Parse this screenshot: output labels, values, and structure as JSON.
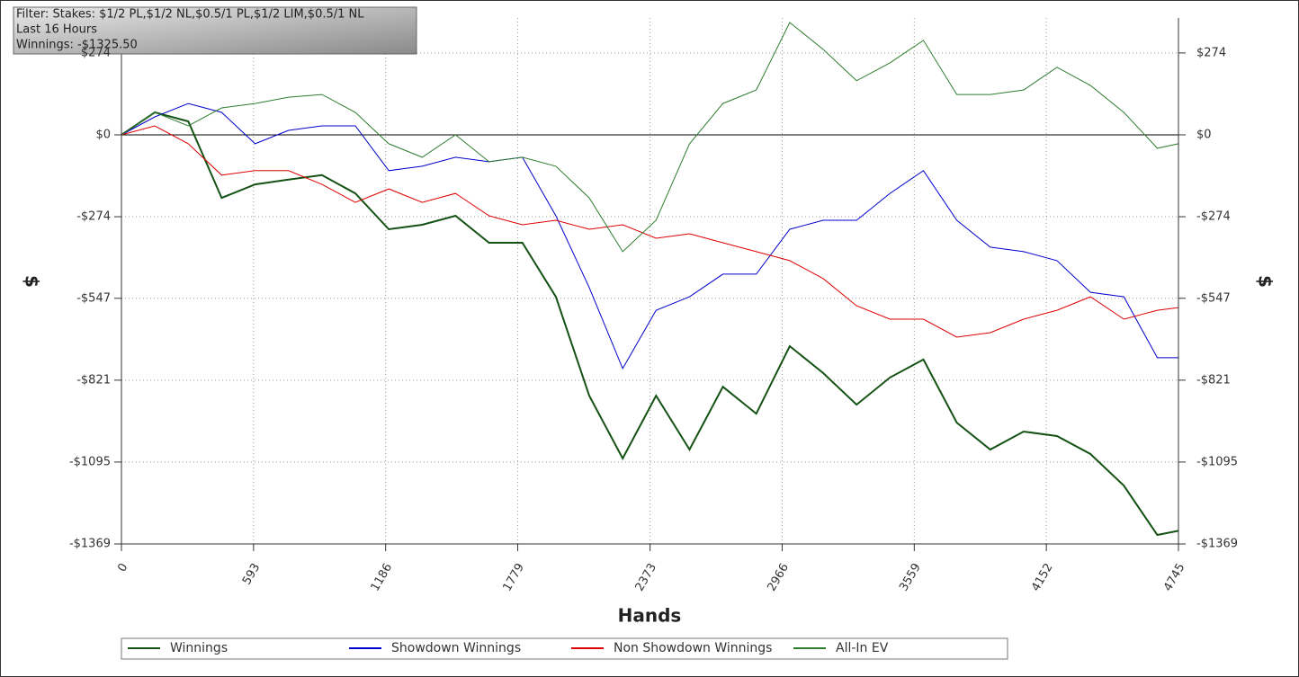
{
  "chart_data": {
    "type": "line",
    "annotations": [
      "Filter: Stakes: $1/2 PL,$1/2 NL,$0.5/1 PL,$1/2 LIM,$0.5/1 NL",
      "Last 16 Hours",
      "Winnings: -$1325.50"
    ],
    "x_label": "Hands",
    "y_label": "$",
    "xlim": [
      0,
      4745
    ],
    "xticks": [
      0,
      593,
      1186,
      1779,
      2373,
      2966,
      3559,
      4152,
      4745
    ],
    "ylim": [
      -1369,
      391
    ],
    "yticks": [
      {
        "value": 274,
        "label": "$274"
      },
      {
        "value": 0,
        "label": "$0"
      },
      {
        "value": -274,
        "label": "-$274"
      },
      {
        "value": -547,
        "label": "-$547"
      },
      {
        "value": -821,
        "label": "-$821"
      },
      {
        "value": -1095,
        "label": "-$1095"
      },
      {
        "value": -1369,
        "label": "-$1369"
      }
    ],
    "grid": true,
    "x": [
      0,
      150,
      300,
      450,
      600,
      750,
      900,
      1050,
      1200,
      1350,
      1500,
      1650,
      1800,
      1950,
      2100,
      2250,
      2400,
      2550,
      2700,
      2850,
      3000,
      3150,
      3300,
      3450,
      3600,
      3750,
      3900,
      4050,
      4200,
      4350,
      4500,
      4650,
      4745
    ],
    "series": [
      {
        "name": "Winnings",
        "color": "#145214",
        "width": 2,
        "values": [
          0,
          75,
          45,
          -211,
          -166,
          -150,
          -135,
          -196,
          -316,
          -301,
          -271,
          -361,
          -361,
          -542,
          -873,
          -1083,
          -873,
          -1053,
          -843,
          -933,
          -707,
          -797,
          -903,
          -812,
          -752,
          -963,
          -1053,
          -993,
          -1008,
          -1068,
          -1174,
          -1339,
          -1325
        ]
      },
      {
        "name": "Showdown Winnings",
        "color": "#0000cc",
        "width": 1,
        "values": [
          0,
          60,
          105,
          75,
          -30,
          15,
          30,
          30,
          -120,
          -105,
          -75,
          -90,
          -75,
          -271,
          -511,
          -782,
          -587,
          -542,
          -466,
          -466,
          -316,
          -286,
          -286,
          -196,
          -120,
          -286,
          -376,
          -391,
          -421,
          -527,
          -542,
          -746,
          -746
        ]
      },
      {
        "name": "Non Showdown Winnings",
        "color": "#dd0000",
        "width": 1,
        "values": [
          0,
          30,
          -30,
          -135,
          -120,
          -120,
          -166,
          -226,
          -181,
          -226,
          -196,
          -271,
          -301,
          -286,
          -316,
          -301,
          -346,
          -331,
          -361,
          -391,
          -421,
          -481,
          -572,
          -617,
          -617,
          -677,
          -662,
          -617,
          -587,
          -542,
          -617,
          -587,
          -578
        ]
      },
      {
        "name": "All-In EV",
        "color": "#2e7d2e",
        "width": 1,
        "values": [
          0,
          75,
          30,
          90,
          105,
          126,
          135,
          75,
          -30,
          -75,
          0,
          -90,
          -75,
          -105,
          -211,
          -391,
          -286,
          -30,
          105,
          150,
          376,
          286,
          181,
          241,
          316,
          135,
          135,
          150,
          226,
          165,
          75,
          -45,
          -30
        ]
      }
    ]
  }
}
